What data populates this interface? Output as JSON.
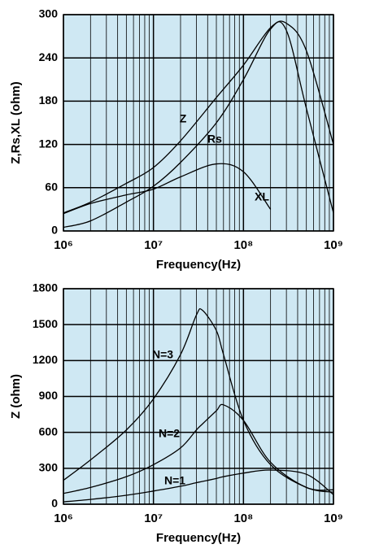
{
  "chart_data": [
    {
      "type": "line",
      "x_scale": "log",
      "grid": true,
      "background": "#cfe8f3",
      "y_label": "Z,Rs,XL (ohm)",
      "x_label": "Frequency(Hz)",
      "x": [
        1000000,
        2000000,
        5000000,
        10000000,
        20000000,
        50000000,
        100000000,
        200000000,
        300000000,
        500000000,
        1000000000
      ],
      "xlim": [
        1000000,
        1000000000
      ],
      "xticks": [
        {
          "value": 1000000,
          "label": "10⁶"
        },
        {
          "value": 10000000,
          "label": "10⁷"
        },
        {
          "value": 100000000,
          "label": "10⁸"
        },
        {
          "value": 1000000000,
          "label": "10⁹"
        }
      ],
      "ylim": [
        0,
        300
      ],
      "yticks": [
        0,
        60,
        120,
        180,
        240,
        300
      ],
      "series": [
        {
          "name": "Z",
          "color": "#000000",
          "values": [
            25,
            40,
            66,
            88,
            125,
            185,
            230,
            282,
            288,
            250,
            120
          ]
        },
        {
          "name": "Rs",
          "color": "#000000",
          "values": [
            5,
            14,
            40,
            62,
            95,
            150,
            210,
            280,
            278,
            170,
            25
          ]
        },
        {
          "name": "XL",
          "color": "#000000",
          "values": [
            24,
            38,
            50,
            58,
            75,
            93,
            82,
            30,
            null,
            null,
            null
          ]
        }
      ]
    },
    {
      "type": "line",
      "x_scale": "log",
      "grid": true,
      "background": "#cfe8f3",
      "y_label": "Z (ohm)",
      "x_label": "Frequency(Hz)",
      "x": [
        1000000,
        2000000,
        5000000,
        10000000,
        20000000,
        30000000,
        35000000,
        50000000,
        60000000,
        100000000,
        200000000,
        500000000,
        1000000000
      ],
      "xlim": [
        1000000,
        1000000000
      ],
      "xticks": [
        {
          "value": 1000000,
          "label": "10⁶"
        },
        {
          "value": 10000000,
          "label": "10⁷"
        },
        {
          "value": 100000000,
          "label": "10⁸"
        },
        {
          "value": 1000000000,
          "label": "10⁹"
        }
      ],
      "ylim": [
        0,
        1800
      ],
      "yticks": [
        0,
        300,
        600,
        900,
        1200,
        1500,
        1800
      ],
      "series": [
        {
          "name": "N=3",
          "color": "#000000",
          "values": [
            200,
            370,
            620,
            880,
            1250,
            1580,
            1620,
            1450,
            1250,
            700,
            330,
            140,
            100
          ]
        },
        {
          "name": "N=2",
          "color": "#000000",
          "values": [
            90,
            140,
            230,
            330,
            470,
            620,
            670,
            780,
            830,
            700,
            350,
            140,
            120
          ]
        },
        {
          "name": "N=1",
          "color": "#000000",
          "values": [
            20,
            40,
            75,
            110,
            150,
            180,
            190,
            215,
            230,
            260,
            285,
            250,
            80
          ]
        }
      ]
    }
  ]
}
